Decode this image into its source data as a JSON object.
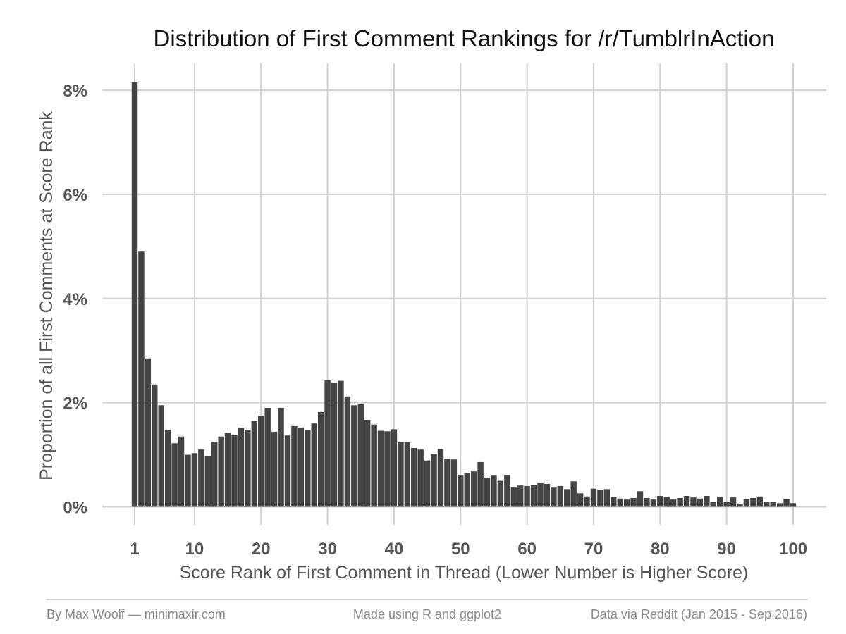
{
  "chart_data": {
    "type": "bar",
    "title": "Distribution of First Comment Rankings for /r/TumblrInAction",
    "xlabel": "Score Rank of First Comment in Thread (Lower Number is Higher Score)",
    "ylabel": "Proportion of all First Comments at Score Rank",
    "xlim": [
      1,
      100
    ],
    "ylim": [
      0,
      8.4
    ],
    "x_ticks": [
      1,
      10,
      20,
      30,
      40,
      50,
      60,
      70,
      80,
      90,
      100
    ],
    "x_tick_labels": [
      "1",
      "10",
      "20",
      "30",
      "40",
      "50",
      "60",
      "70",
      "80",
      "90",
      "100"
    ],
    "y_ticks": [
      0,
      2,
      4,
      6,
      8
    ],
    "y_tick_labels": [
      "0%",
      "2%",
      "4%",
      "6%",
      "8%"
    ],
    "grid": true,
    "x": [
      1,
      2,
      3,
      4,
      5,
      6,
      7,
      8,
      9,
      10,
      11,
      12,
      13,
      14,
      15,
      16,
      17,
      18,
      19,
      20,
      21,
      22,
      23,
      24,
      25,
      26,
      27,
      28,
      29,
      30,
      31,
      32,
      33,
      34,
      35,
      36,
      37,
      38,
      39,
      40,
      41,
      42,
      43,
      44,
      45,
      46,
      47,
      48,
      49,
      50,
      51,
      52,
      53,
      54,
      55,
      56,
      57,
      58,
      59,
      60,
      61,
      62,
      63,
      64,
      65,
      66,
      67,
      68,
      69,
      70,
      71,
      72,
      73,
      74,
      75,
      76,
      77,
      78,
      79,
      80,
      81,
      82,
      83,
      84,
      85,
      86,
      87,
      88,
      89,
      90,
      91,
      92,
      93,
      94,
      95,
      96,
      97,
      98,
      99,
      100
    ],
    "values": [
      8.15,
      4.9,
      2.85,
      2.35,
      1.95,
      1.48,
      1.22,
      1.35,
      1.0,
      1.03,
      1.1,
      0.97,
      1.25,
      1.35,
      1.42,
      1.38,
      1.52,
      1.48,
      1.65,
      1.75,
      1.9,
      1.44,
      1.9,
      1.37,
      1.55,
      1.52,
      1.47,
      1.6,
      1.82,
      2.43,
      2.38,
      2.42,
      2.12,
      1.95,
      1.97,
      1.67,
      1.58,
      1.46,
      1.45,
      1.49,
      1.24,
      1.24,
      1.13,
      1.1,
      0.89,
      1.02,
      1.11,
      0.92,
      0.91,
      0.6,
      0.65,
      0.68,
      0.86,
      0.56,
      0.6,
      0.5,
      0.61,
      0.37,
      0.41,
      0.4,
      0.42,
      0.46,
      0.44,
      0.37,
      0.4,
      0.34,
      0.49,
      0.26,
      0.2,
      0.35,
      0.33,
      0.34,
      0.19,
      0.16,
      0.14,
      0.17,
      0.3,
      0.17,
      0.14,
      0.21,
      0.19,
      0.14,
      0.17,
      0.21,
      0.18,
      0.16,
      0.21,
      0.09,
      0.19,
      0.09,
      0.18,
      0.06,
      0.15,
      0.17,
      0.2,
      0.09,
      0.09,
      0.07,
      0.15,
      0.07
    ]
  },
  "footer": {
    "author": "By Max Woolf — minimaxir.com",
    "tool": "Made using R and ggplot2",
    "source": "Data via Reddit (Jan 2015 - Sep 2016)"
  }
}
